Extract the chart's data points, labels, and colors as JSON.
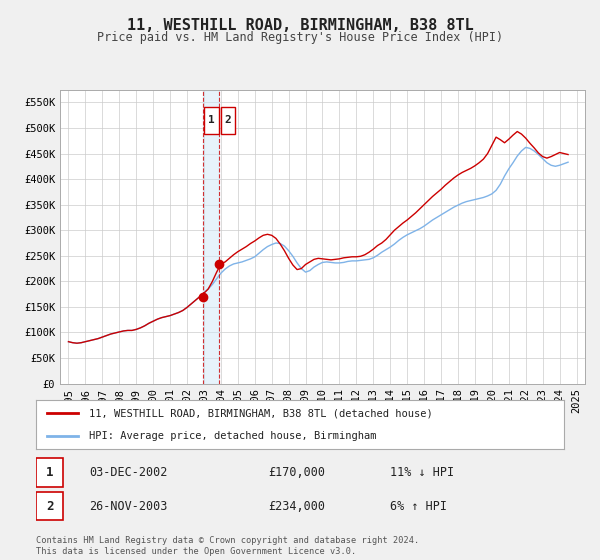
{
  "title": "11, WESTHILL ROAD, BIRMINGHAM, B38 8TL",
  "subtitle": "Price paid vs. HM Land Registry's House Price Index (HPI)",
  "background_color": "#f0f0f0",
  "plot_bg_color": "#ffffff",
  "grid_color": "#cccccc",
  "red_line_color": "#cc0000",
  "blue_line_color": "#7fb3e8",
  "transaction1": {
    "label": "1",
    "date": "03-DEC-2002",
    "price": 170000,
    "hpi_note": "11% ↓ HPI",
    "x": 2002.92
  },
  "transaction2": {
    "label": "2",
    "date": "26-NOV-2003",
    "price": 234000,
    "hpi_note": "6% ↑ HPI",
    "x": 2003.9
  },
  "vline_x1": 2002.92,
  "vline_x2": 2003.9,
  "vline_color": "#cc0000",
  "ylim": [
    0,
    575000
  ],
  "xlim": [
    1994.5,
    2025.5
  ],
  "yticks": [
    0,
    50000,
    100000,
    150000,
    200000,
    250000,
    300000,
    350000,
    400000,
    450000,
    500000,
    550000
  ],
  "ytick_labels": [
    "£0",
    "£50K",
    "£100K",
    "£150K",
    "£200K",
    "£250K",
    "£300K",
    "£350K",
    "£400K",
    "£450K",
    "£500K",
    "£550K"
  ],
  "xticks": [
    1995,
    1996,
    1997,
    1998,
    1999,
    2000,
    2001,
    2002,
    2003,
    2004,
    2005,
    2006,
    2007,
    2008,
    2009,
    2010,
    2011,
    2012,
    2013,
    2014,
    2015,
    2016,
    2017,
    2018,
    2019,
    2020,
    2021,
    2022,
    2023,
    2024,
    2025
  ],
  "legend_red": "11, WESTHILL ROAD, BIRMINGHAM, B38 8TL (detached house)",
  "legend_blue": "HPI: Average price, detached house, Birmingham",
  "footer": "Contains HM Land Registry data © Crown copyright and database right 2024.\nThis data is licensed under the Open Government Licence v3.0.",
  "hpi_data_x": [
    1995.0,
    1995.25,
    1995.5,
    1995.75,
    1996.0,
    1996.25,
    1996.5,
    1996.75,
    1997.0,
    1997.25,
    1997.5,
    1997.75,
    1998.0,
    1998.25,
    1998.5,
    1998.75,
    1999.0,
    1999.25,
    1999.5,
    1999.75,
    2000.0,
    2000.25,
    2000.5,
    2000.75,
    2001.0,
    2001.25,
    2001.5,
    2001.75,
    2002.0,
    2002.25,
    2002.5,
    2002.75,
    2003.0,
    2003.25,
    2003.5,
    2003.75,
    2004.0,
    2004.25,
    2004.5,
    2004.75,
    2005.0,
    2005.25,
    2005.5,
    2005.75,
    2006.0,
    2006.25,
    2006.5,
    2006.75,
    2007.0,
    2007.25,
    2007.5,
    2007.75,
    2008.0,
    2008.25,
    2008.5,
    2008.75,
    2009.0,
    2009.25,
    2009.5,
    2009.75,
    2010.0,
    2010.25,
    2010.5,
    2010.75,
    2011.0,
    2011.25,
    2011.5,
    2011.75,
    2012.0,
    2012.25,
    2012.5,
    2012.75,
    2013.0,
    2013.25,
    2013.5,
    2013.75,
    2014.0,
    2014.25,
    2014.5,
    2014.75,
    2015.0,
    2015.25,
    2015.5,
    2015.75,
    2016.0,
    2016.25,
    2016.5,
    2016.75,
    2017.0,
    2017.25,
    2017.5,
    2017.75,
    2018.0,
    2018.25,
    2018.5,
    2018.75,
    2019.0,
    2019.25,
    2019.5,
    2019.75,
    2020.0,
    2020.25,
    2020.5,
    2020.75,
    2021.0,
    2021.25,
    2021.5,
    2021.75,
    2022.0,
    2022.25,
    2022.5,
    2022.75,
    2023.0,
    2023.25,
    2023.5,
    2023.75,
    2024.0,
    2024.25,
    2024.5
  ],
  "hpi_data_y": [
    82000,
    80000,
    79000,
    80000,
    82000,
    84000,
    86000,
    88000,
    91000,
    94000,
    97000,
    99000,
    101000,
    103000,
    104000,
    104000,
    106000,
    109000,
    113000,
    118000,
    122000,
    126000,
    129000,
    131000,
    133000,
    136000,
    139000,
    143000,
    149000,
    156000,
    163000,
    170000,
    177000,
    185000,
    194000,
    205000,
    216000,
    224000,
    230000,
    234000,
    236000,
    238000,
    241000,
    244000,
    248000,
    255000,
    262000,
    268000,
    272000,
    275000,
    274000,
    269000,
    260000,
    249000,
    236000,
    225000,
    218000,
    221000,
    228000,
    233000,
    237000,
    238000,
    237000,
    236000,
    236000,
    237000,
    239000,
    240000,
    240000,
    241000,
    242000,
    243000,
    246000,
    251000,
    257000,
    262000,
    267000,
    273000,
    280000,
    286000,
    291000,
    295000,
    299000,
    303000,
    308000,
    314000,
    320000,
    325000,
    330000,
    335000,
    340000,
    345000,
    349000,
    353000,
    356000,
    358000,
    360000,
    362000,
    364000,
    367000,
    371000,
    378000,
    390000,
    406000,
    420000,
    432000,
    445000,
    455000,
    462000,
    460000,
    455000,
    448000,
    440000,
    432000,
    427000,
    425000,
    427000,
    430000,
    433000
  ],
  "property_data_x": [
    1995.0,
    1995.25,
    1995.5,
    1995.75,
    1996.0,
    1996.25,
    1996.5,
    1996.75,
    1997.0,
    1997.25,
    1997.5,
    1997.75,
    1998.0,
    1998.25,
    1998.5,
    1998.75,
    1999.0,
    1999.25,
    1999.5,
    1999.75,
    2000.0,
    2000.25,
    2000.5,
    2000.75,
    2001.0,
    2001.25,
    2001.5,
    2001.75,
    2002.0,
    2002.25,
    2002.5,
    2002.75,
    2003.0,
    2003.25,
    2003.5,
    2003.75,
    2004.0,
    2004.25,
    2004.5,
    2004.75,
    2005.0,
    2005.25,
    2005.5,
    2005.75,
    2006.0,
    2006.25,
    2006.5,
    2006.75,
    2007.0,
    2007.25,
    2007.5,
    2007.75,
    2008.0,
    2008.25,
    2008.5,
    2008.75,
    2009.0,
    2009.25,
    2009.5,
    2009.75,
    2010.0,
    2010.25,
    2010.5,
    2010.75,
    2011.0,
    2011.25,
    2011.5,
    2011.75,
    2012.0,
    2012.25,
    2012.5,
    2012.75,
    2013.0,
    2013.25,
    2013.5,
    2013.75,
    2014.0,
    2014.25,
    2014.5,
    2014.75,
    2015.0,
    2015.25,
    2015.5,
    2015.75,
    2016.0,
    2016.25,
    2016.5,
    2016.75,
    2017.0,
    2017.25,
    2017.5,
    2017.75,
    2018.0,
    2018.25,
    2018.5,
    2018.75,
    2019.0,
    2019.25,
    2019.5,
    2019.75,
    2020.0,
    2020.25,
    2020.5,
    2020.75,
    2021.0,
    2021.25,
    2021.5,
    2021.75,
    2022.0,
    2022.25,
    2022.5,
    2022.75,
    2023.0,
    2023.25,
    2023.5,
    2023.75,
    2024.0,
    2024.25,
    2024.5
  ],
  "property_data_y": [
    82000,
    80000,
    79000,
    80000,
    82000,
    84000,
    86000,
    88000,
    91000,
    94000,
    97000,
    99000,
    101000,
    103000,
    104000,
    104000,
    106000,
    109000,
    113000,
    118000,
    122000,
    126000,
    129000,
    131000,
    133000,
    136000,
    139000,
    143000,
    149000,
    156000,
    163000,
    170000,
    177000,
    185000,
    200000,
    218000,
    234000,
    238000,
    245000,
    252000,
    258000,
    263000,
    268000,
    274000,
    279000,
    285000,
    290000,
    292000,
    290000,
    284000,
    273000,
    260000,
    245000,
    232000,
    223000,
    225000,
    233000,
    238000,
    243000,
    245000,
    244000,
    243000,
    242000,
    243000,
    244000,
    246000,
    247000,
    248000,
    248000,
    249000,
    252000,
    257000,
    263000,
    270000,
    275000,
    282000,
    291000,
    300000,
    307000,
    314000,
    320000,
    327000,
    334000,
    342000,
    350000,
    358000,
    366000,
    373000,
    380000,
    388000,
    395000,
    402000,
    408000,
    413000,
    417000,
    421000,
    426000,
    432000,
    439000,
    450000,
    466000,
    482000,
    477000,
    471000,
    478000,
    486000,
    493000,
    488000,
    480000,
    470000,
    461000,
    451000,
    444000,
    441000,
    444000,
    448000,
    452000,
    450000,
    448000
  ]
}
